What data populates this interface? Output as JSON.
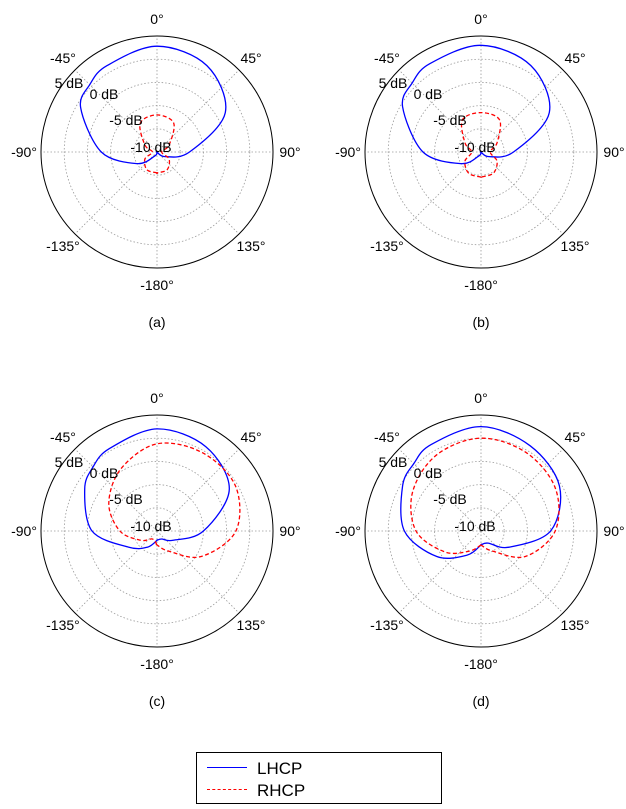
{
  "chart_data": [
    {
      "type": "polar",
      "caption": "(a)",
      "angle_ticks": [
        "0°",
        "45°",
        "90°",
        "135°",
        "-180°",
        "-135°",
        "-90°",
        "-45°"
      ],
      "radial_ticks": [
        "5 dB",
        "0 dB",
        "-5 dB",
        "-10 dB"
      ],
      "rlim": [
        -15,
        10
      ],
      "series": [
        {
          "key": "LHCP",
          "theta": [
            -180,
            -150,
            -120,
            -90,
            -60,
            -45,
            -30,
            0,
            30,
            60,
            90,
            120,
            150,
            180
          ],
          "r": [
            -15,
            -14,
            -10,
            -3,
            4,
            5.5,
            6.5,
            7.8,
            6.5,
            2,
            -8,
            -13,
            -15,
            -15
          ]
        },
        {
          "key": "RHCP",
          "theta": [
            -180,
            -150,
            -120,
            -90,
            -60,
            -30,
            0,
            30,
            60,
            90,
            120,
            150,
            180
          ],
          "r": [
            -10.5,
            -10.6,
            -12,
            -14,
            -12,
            -7.8,
            -7,
            -7.8,
            -12,
            -14,
            -12,
            -10.6,
            -10.5
          ]
        }
      ]
    },
    {
      "type": "polar",
      "caption": "(b)",
      "angle_ticks": [
        "0°",
        "45°",
        "90°",
        "135°",
        "-180°",
        "-135°",
        "-90°",
        "-45°"
      ],
      "radial_ticks": [
        "5 dB",
        "0 dB",
        "-5 dB",
        "-10 dB"
      ],
      "rlim": [
        -15,
        10
      ],
      "series": [
        {
          "key": "LHCP",
          "theta": [
            -180,
            -150,
            -120,
            -90,
            -60,
            -45,
            -30,
            0,
            30,
            60,
            90,
            120,
            150,
            180
          ],
          "r": [
            -15,
            -14,
            -10,
            -2.5,
            4.5,
            6,
            7,
            8,
            6.5,
            2,
            -8,
            -13,
            -15,
            -15
          ]
        },
        {
          "key": "RHCP",
          "theta": [
            -180,
            -150,
            -120,
            -90,
            -60,
            -30,
            0,
            30,
            60,
            90,
            120,
            150,
            180
          ],
          "r": [
            -9.6,
            -9.7,
            -11,
            -13,
            -11,
            -7,
            -6.5,
            -7,
            -11,
            -13,
            -11,
            -9.7,
            -9.6
          ]
        }
      ]
    },
    {
      "type": "polar",
      "caption": "(c)",
      "angle_ticks": [
        "0°",
        "45°",
        "90°",
        "135°",
        "-180°",
        "-135°",
        "-90°",
        "-45°"
      ],
      "radial_ticks": [
        "5 dB",
        "0 dB",
        "-5 dB",
        "-10 dB"
      ],
      "rlim": [
        -15,
        10
      ],
      "series": [
        {
          "key": "LHCP",
          "theta": [
            -180,
            -150,
            -120,
            -90,
            -60,
            -45,
            -30,
            0,
            30,
            60,
            90,
            120,
            150,
            180
          ],
          "r": [
            -13,
            -11,
            -8,
            -1,
            3,
            4.5,
            5.5,
            7,
            6,
            3,
            -5,
            -11,
            -13,
            -13
          ]
        },
        {
          "key": "RHCP",
          "theta": [
            -180,
            -150,
            -120,
            -90,
            -60,
            -30,
            0,
            30,
            60,
            90,
            120,
            150,
            180
          ],
          "r": [
            -12,
            -13,
            -11,
            -7,
            -3,
            0.5,
            3.8,
            4.5,
            4.5,
            2,
            -4,
            -10,
            -12
          ]
        }
      ]
    },
    {
      "type": "polar",
      "caption": "(d)",
      "angle_ticks": [
        "0°",
        "45°",
        "90°",
        "135°",
        "-180°",
        "-135°",
        "-90°",
        "-45°"
      ],
      "radial_ticks": [
        "5 dB",
        "0 dB",
        "-5 dB",
        "-10 dB"
      ],
      "rlim": [
        -15,
        10
      ],
      "series": [
        {
          "key": "LHCP",
          "theta": [
            -180,
            -150,
            -120,
            -90,
            -60,
            -45,
            -30,
            0,
            30,
            60,
            90,
            120,
            150,
            180
          ],
          "r": [
            -12,
            -9,
            -4,
            1.5,
            4.5,
            5.5,
            6.5,
            7.5,
            6.2,
            4.5,
            0,
            -8,
            -12,
            -12
          ]
        },
        {
          "key": "RHCP",
          "theta": [
            -180,
            -150,
            -120,
            -90,
            -60,
            -30,
            0,
            30,
            60,
            90,
            120,
            150,
            180
          ],
          "r": [
            -12,
            -10,
            -6,
            -1,
            2,
            4,
            5,
            4.5,
            3.5,
            1,
            -4,
            -10,
            -12
          ]
        }
      ]
    }
  ],
  "legend": {
    "items": [
      {
        "key": "LHCP",
        "label": "LHCP",
        "color": "#0000ff",
        "style": "solid"
      },
      {
        "key": "RHCP",
        "label": "RHCP",
        "color": "#ff0000",
        "style": "dashed"
      }
    ]
  }
}
